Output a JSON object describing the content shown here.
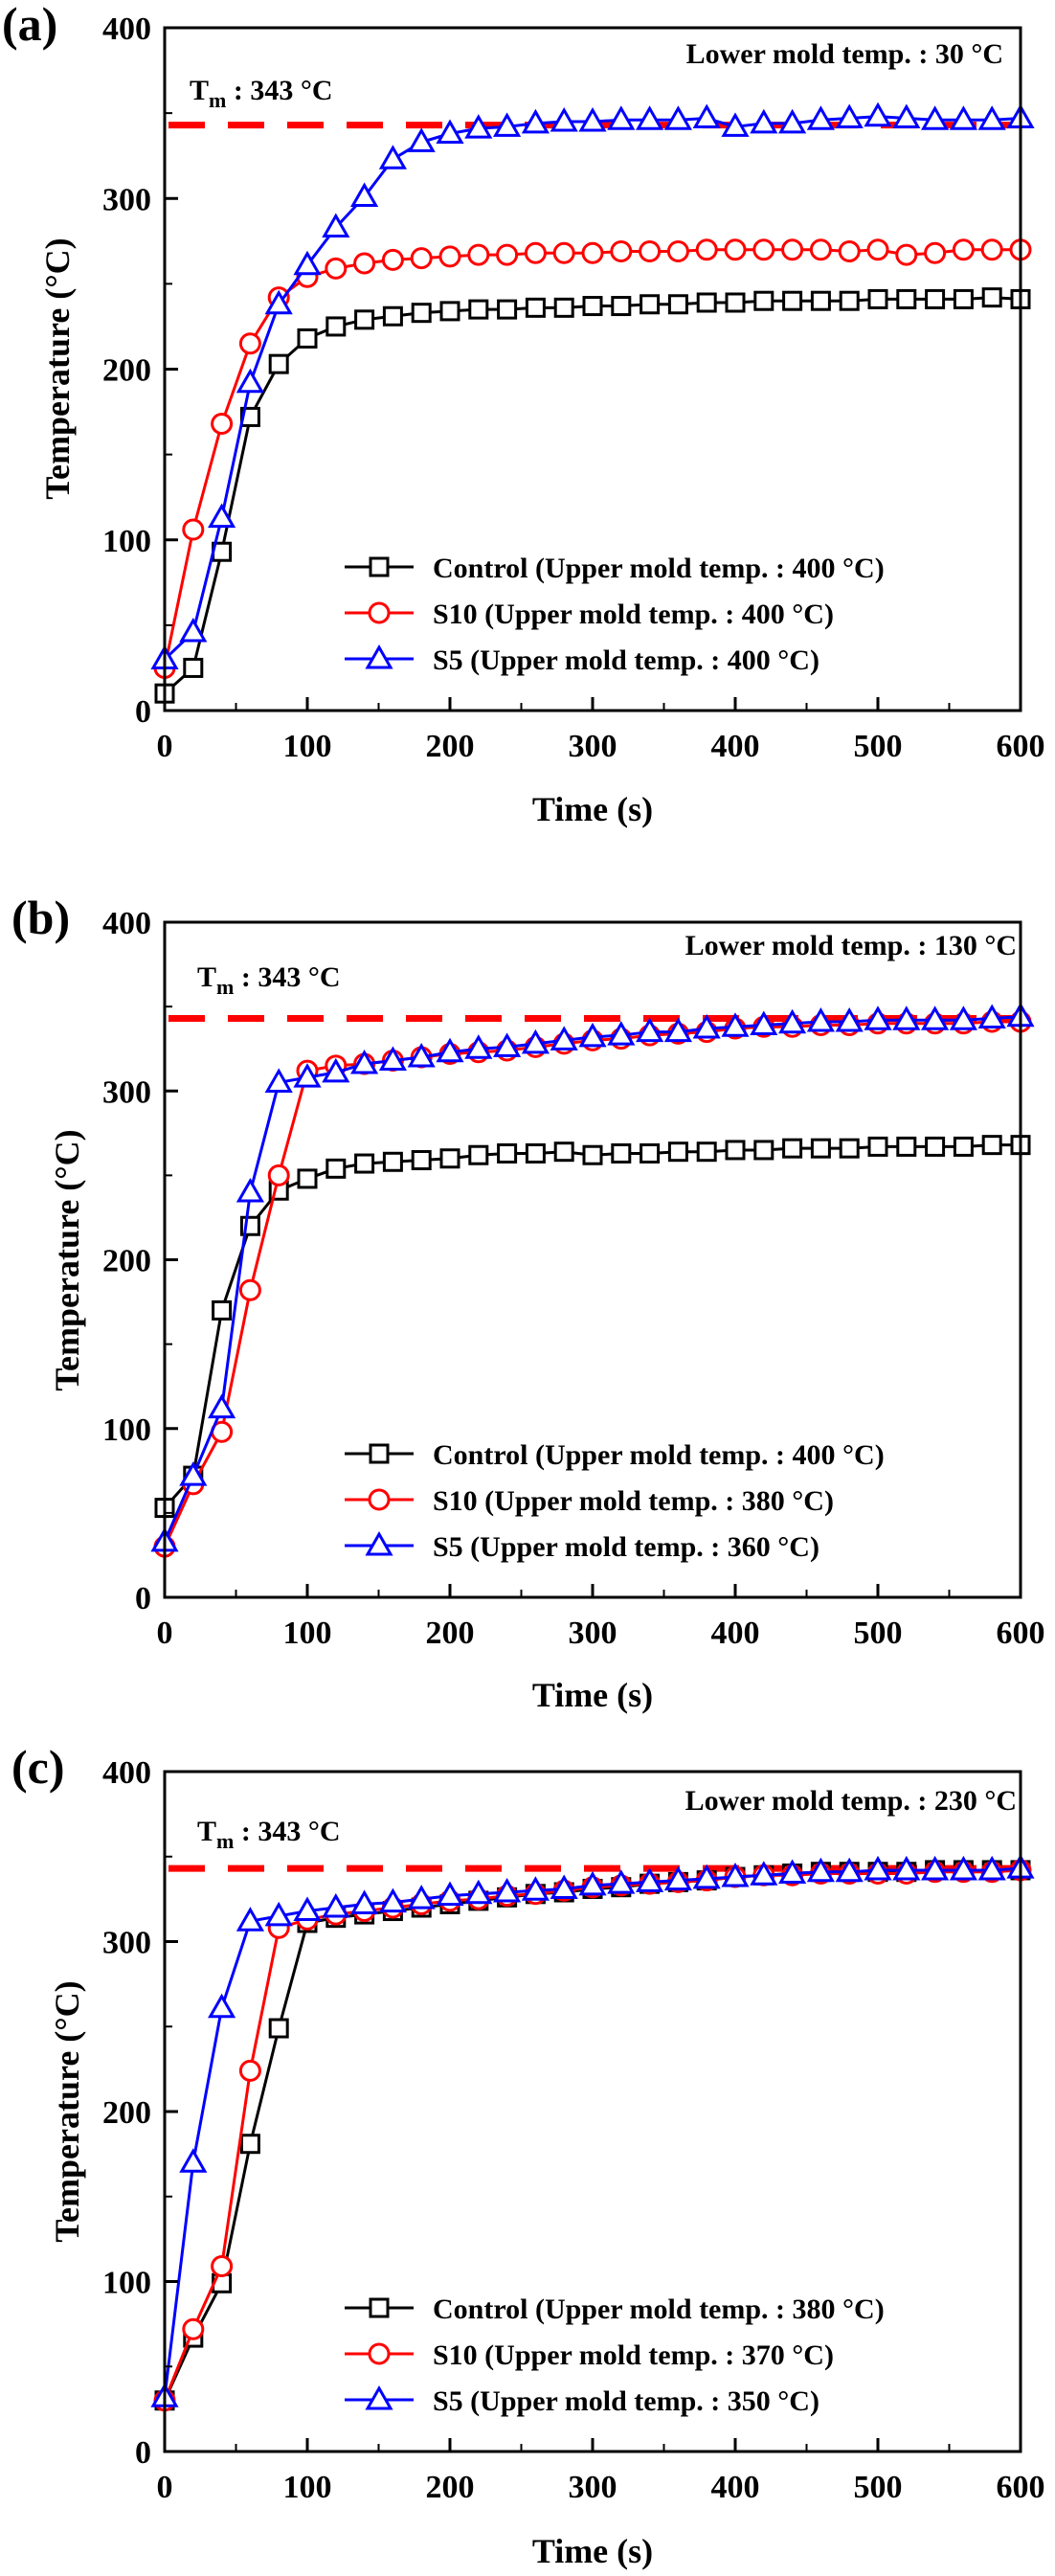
{
  "chart_data": [
    {
      "type": "line",
      "panel_label": "(a)",
      "xlabel": "Time (s)",
      "ylabel": "Temperature (°C)",
      "xlim": [
        0,
        600
      ],
      "ylim": [
        0,
        400
      ],
      "xticks": [
        "0",
        "100",
        "200",
        "300",
        "400",
        "500",
        "600"
      ],
      "yticks": [
        "0",
        "100",
        "200",
        "300",
        "400"
      ],
      "grid": false,
      "legend_position": "bottom-right",
      "annotations": {
        "mold_label": "Lower mold temp. : 30 °C",
        "tm_label_main": "T",
        "tm_label_sub": "m",
        "tm_label_value": " : 343 °C"
      },
      "reference_line": {
        "y": 343,
        "style": "dashed",
        "color": "#ff0000"
      },
      "series": [
        {
          "name": "Control (Upper mold temp. : 400 °C)",
          "color": "#000000",
          "marker": "square",
          "x": [
            0,
            20,
            40,
            60,
            80,
            100,
            120,
            140,
            160,
            180,
            200,
            220,
            240,
            260,
            280,
            300,
            320,
            340,
            360,
            380,
            400,
            420,
            440,
            460,
            480,
            500,
            520,
            540,
            560,
            580,
            600
          ],
          "y": [
            10,
            25,
            93,
            172,
            203,
            218,
            225,
            229,
            231,
            233,
            234,
            235,
            235,
            236,
            236,
            237,
            237,
            238,
            238,
            239,
            239,
            240,
            240,
            240,
            240,
            241,
            241,
            241,
            241,
            242,
            241
          ]
        },
        {
          "name": "S10 (Upper mold temp. : 400 °C)",
          "color": "#ff0000",
          "marker": "circle",
          "x": [
            0,
            20,
            40,
            60,
            80,
            100,
            120,
            140,
            160,
            180,
            200,
            220,
            240,
            260,
            280,
            300,
            320,
            340,
            360,
            380,
            400,
            420,
            440,
            460,
            480,
            500,
            520,
            540,
            560,
            580,
            600
          ],
          "y": [
            25,
            106,
            168,
            215,
            242,
            254,
            259,
            262,
            264,
            265,
            266,
            267,
            267,
            268,
            268,
            268,
            269,
            269,
            269,
            270,
            270,
            270,
            270,
            270,
            269,
            270,
            267,
            268,
            270,
            270,
            270
          ]
        },
        {
          "name": "S5 (Upper mold temp. : 400 °C)",
          "color": "#0000ff",
          "marker": "triangle",
          "x": [
            0,
            20,
            40,
            60,
            80,
            100,
            120,
            140,
            160,
            180,
            200,
            220,
            240,
            260,
            280,
            300,
            320,
            340,
            360,
            380,
            400,
            420,
            440,
            460,
            480,
            500,
            520,
            540,
            560,
            580,
            600
          ],
          "y": [
            30,
            46,
            113,
            192,
            238,
            261,
            283,
            301,
            323,
            333,
            338,
            341,
            342,
            344,
            345,
            345,
            346,
            346,
            346,
            347,
            342,
            344,
            344,
            346,
            347,
            348,
            347,
            346,
            346,
            346,
            347
          ]
        }
      ]
    },
    {
      "type": "line",
      "panel_label": "(b)",
      "xlabel": "Time (s)",
      "ylabel": "Temperature (°C)",
      "xlim": [
        0,
        600
      ],
      "ylim": [
        0,
        400
      ],
      "xticks": [
        "0",
        "100",
        "200",
        "300",
        "400",
        "500",
        "600"
      ],
      "yticks": [
        "0",
        "100",
        "200",
        "300",
        "400"
      ],
      "grid": false,
      "legend_position": "bottom-right",
      "annotations": {
        "mold_label": "Lower mold temp. : 130 °C",
        "tm_label_main": "T",
        "tm_label_sub": "m",
        "tm_label_value": " : 343 °C"
      },
      "reference_line": {
        "y": 343,
        "style": "dashed",
        "color": "#ff0000"
      },
      "series": [
        {
          "name": "Control (Upper mold temp. : 400 °C)",
          "color": "#000000",
          "marker": "square",
          "x": [
            0,
            20,
            40,
            60,
            80,
            100,
            120,
            140,
            160,
            180,
            200,
            220,
            240,
            260,
            280,
            300,
            320,
            340,
            360,
            380,
            400,
            420,
            440,
            460,
            480,
            500,
            520,
            540,
            560,
            580,
            600
          ],
          "y": [
            53,
            72,
            170,
            220,
            241,
            248,
            254,
            257,
            258,
            259,
            260,
            262,
            263,
            263,
            264,
            262,
            263,
            263,
            264,
            264,
            265,
            265,
            266,
            266,
            266,
            267,
            267,
            267,
            267,
            268,
            268
          ]
        },
        {
          "name": "S10 (Upper mold temp. : 380 °C)",
          "color": "#ff0000",
          "marker": "circle",
          "x": [
            0,
            20,
            40,
            60,
            80,
            100,
            120,
            140,
            160,
            180,
            200,
            220,
            240,
            260,
            280,
            300,
            320,
            340,
            360,
            380,
            400,
            420,
            440,
            460,
            480,
            500,
            520,
            540,
            560,
            580,
            600
          ],
          "y": [
            30,
            67,
            98,
            182,
            250,
            312,
            315,
            316,
            318,
            320,
            322,
            323,
            324,
            326,
            328,
            330,
            331,
            333,
            334,
            335,
            337,
            338,
            338,
            339,
            339,
            340,
            340,
            340,
            340,
            341,
            341
          ]
        },
        {
          "name": "S5 (Upper mold temp. : 360 °C)",
          "color": "#0000ff",
          "marker": "triangle",
          "x": [
            0,
            20,
            40,
            60,
            80,
            100,
            120,
            140,
            160,
            180,
            200,
            220,
            240,
            260,
            280,
            300,
            320,
            340,
            360,
            380,
            400,
            420,
            440,
            460,
            480,
            500,
            520,
            540,
            560,
            580,
            600
          ],
          "y": [
            33,
            72,
            112,
            240,
            305,
            308,
            311,
            316,
            318,
            320,
            323,
            325,
            326,
            328,
            330,
            332,
            333,
            335,
            335,
            337,
            338,
            339,
            340,
            341,
            341,
            342,
            342,
            342,
            342,
            343,
            344
          ]
        }
      ]
    },
    {
      "type": "line",
      "panel_label": "(c)",
      "xlabel": "Time (s)",
      "ylabel": "Temperature (°C)",
      "xlim": [
        0,
        600
      ],
      "ylim": [
        0,
        400
      ],
      "xticks": [
        "0",
        "100",
        "200",
        "300",
        "400",
        "500",
        "600"
      ],
      "yticks": [
        "0",
        "100",
        "200",
        "300",
        "400"
      ],
      "grid": false,
      "legend_position": "bottom-right",
      "annotations": {
        "mold_label": "Lower mold temp. : 230 °C",
        "tm_label_main": "T",
        "tm_label_sub": "m",
        "tm_label_value": " : 343 °C"
      },
      "reference_line": {
        "y": 343,
        "style": "dashed",
        "color": "#ff0000"
      },
      "series": [
        {
          "name": "Control (Upper mold temp. : 380 °C)",
          "color": "#000000",
          "marker": "square",
          "x": [
            0,
            20,
            40,
            60,
            80,
            100,
            120,
            140,
            160,
            180,
            200,
            220,
            240,
            260,
            280,
            300,
            320,
            340,
            360,
            380,
            400,
            420,
            440,
            460,
            480,
            500,
            520,
            540,
            560,
            580,
            600
          ],
          "y": [
            30,
            67,
            99,
            181,
            249,
            311,
            314,
            316,
            318,
            320,
            322,
            324,
            326,
            328,
            329,
            331,
            332,
            334,
            335,
            336,
            338,
            339,
            340,
            341,
            341,
            341,
            341,
            342,
            342,
            342,
            342
          ]
        },
        {
          "name": "S10 (Upper mold temp. : 370 °C)",
          "color": "#ff0000",
          "marker": "circle",
          "x": [
            0,
            20,
            40,
            60,
            80,
            100,
            120,
            140,
            160,
            180,
            200,
            220,
            240,
            260,
            280,
            300,
            320,
            340,
            360,
            380,
            400,
            420,
            440,
            460,
            480,
            500,
            520,
            540,
            560,
            580,
            600
          ],
          "y": [
            30,
            72,
            109,
            224,
            308,
            313,
            316,
            318,
            320,
            322,
            324,
            325,
            327,
            328,
            330,
            332,
            333,
            334,
            335,
            336,
            338,
            339,
            339,
            340,
            340,
            340,
            340,
            341,
            341,
            341,
            342
          ]
        },
        {
          "name": "S5 (Upper mold temp. : 350 °C)",
          "color": "#0000ff",
          "marker": "triangle",
          "x": [
            0,
            20,
            40,
            60,
            80,
            100,
            120,
            140,
            160,
            180,
            200,
            220,
            240,
            260,
            280,
            300,
            320,
            340,
            360,
            380,
            400,
            420,
            440,
            460,
            480,
            500,
            520,
            540,
            560,
            580,
            600
          ],
          "y": [
            32,
            170,
            261,
            312,
            315,
            318,
            320,
            322,
            323,
            325,
            327,
            328,
            329,
            330,
            331,
            333,
            334,
            335,
            336,
            337,
            338,
            339,
            340,
            341,
            341,
            342,
            342,
            342,
            342,
            342,
            343
          ]
        }
      ]
    }
  ]
}
